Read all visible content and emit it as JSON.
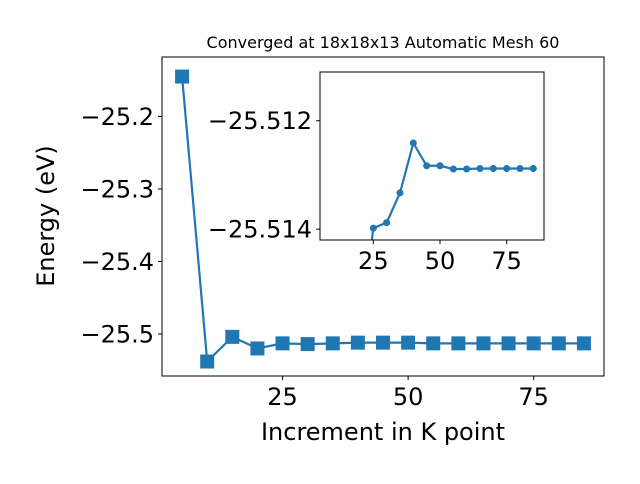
{
  "chart_data": [
    {
      "type": "line",
      "title": "Converged at 18x18x13 Automatic Mesh 60",
      "xlabel": "Increment in K point",
      "ylabel": "Energy (eV)",
      "xlim": [
        1,
        89
      ],
      "ylim": [
        -25.558,
        -25.118
      ],
      "x_ticks": [
        25,
        50,
        75
      ],
      "y_ticks": [
        -25.2,
        -25.3,
        -25.4,
        -25.5
      ],
      "x_tick_labels": [
        "25",
        "50",
        "75"
      ],
      "y_tick_labels": [
        "−25.2",
        "−25.3",
        "−25.4",
        "−25.5"
      ],
      "marker": "square",
      "color": "#1f77b4",
      "grid": false,
      "x": [
        5,
        10,
        15,
        20,
        25,
        30,
        35,
        40,
        45,
        50,
        55,
        60,
        65,
        70,
        75,
        80,
        85
      ],
      "y": [
        -25.145,
        -25.538,
        -25.504,
        -25.52,
        -25.513,
        -25.514,
        -25.513,
        -25.512,
        -25.512,
        -25.512,
        -25.513,
        -25.513,
        -25.513,
        -25.513,
        -25.513,
        -25.513,
        -25.513
      ]
    },
    {
      "type": "line",
      "title": "",
      "xlim": [
        5,
        89
      ],
      "ylim": [
        -25.5142,
        -25.5111
      ],
      "x_ticks": [
        25,
        50,
        75
      ],
      "y_ticks": [
        -25.514,
        -25.512
      ],
      "x_tick_labels": [
        "25",
        "50",
        "75"
      ],
      "y_tick_labels": [
        "−25.514",
        "−25.512"
      ],
      "marker": "circle",
      "color": "#1f77b4",
      "grid": false,
      "x": [
        20,
        25,
        30,
        35,
        40,
        45,
        50,
        55,
        60,
        65,
        70,
        75,
        80,
        85
      ],
      "y": [
        -25.516,
        -25.51398,
        -25.51388,
        -25.51333,
        -25.51241,
        -25.51283,
        -25.51283,
        -25.51289,
        -25.51289,
        -25.51288,
        -25.51288,
        -25.51288,
        -25.51288,
        -25.51288
      ]
    }
  ]
}
